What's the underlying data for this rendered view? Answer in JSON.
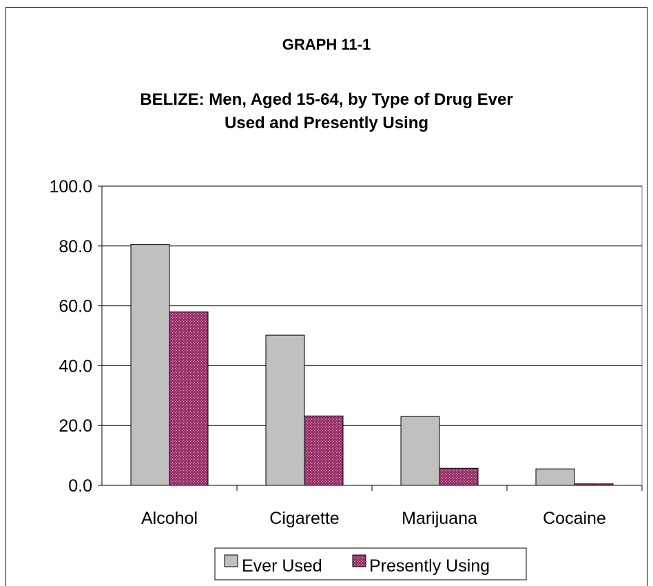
{
  "chart_data": {
    "type": "bar",
    "supertitle": "GRAPH 11-1",
    "title_lines": [
      "BELIZE: Men, Aged 15-64, by Type of Drug Ever",
      "Used and Presently Using"
    ],
    "categories": [
      "Alcohol",
      "Cigarette",
      "Marijuana",
      "Cocaine"
    ],
    "series": [
      {
        "name": "Ever Used",
        "values": [
          80.5,
          50.2,
          23.0,
          5.5
        ],
        "color": "#c0c0c0"
      },
      {
        "name": "Presently Using",
        "values": [
          58.0,
          23.2,
          5.7,
          0.5
        ],
        "color": "#993366"
      }
    ],
    "ylim": [
      0,
      100
    ],
    "yticks": [
      "0.0",
      "20.0",
      "40.0",
      "60.0",
      "80.0",
      "100.0"
    ],
    "grid": true,
    "legend_position": "bottom"
  }
}
